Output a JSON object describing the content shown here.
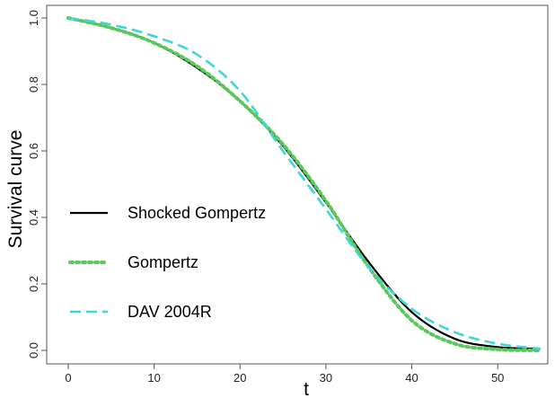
{
  "chart_data": {
    "type": "line",
    "title": "",
    "xlabel": "t",
    "ylabel": "Survival curve",
    "xlim": [
      0,
      55
    ],
    "ylim": [
      0,
      1
    ],
    "xticks": [
      "0",
      "10",
      "20",
      "30",
      "40",
      "50"
    ],
    "yticks": [
      "0.0",
      "0.2",
      "0.4",
      "0.6",
      "0.8",
      "1.0"
    ],
    "grid": false,
    "legend": "center-left",
    "series": [
      {
        "name": "Shocked Gompertz",
        "color": "#000000",
        "style": "solid",
        "x": [
          0,
          5,
          10,
          15,
          20,
          25,
          30,
          35,
          40,
          45,
          50,
          55
        ],
        "y": [
          1.0,
          0.97,
          0.925,
          0.85,
          0.75,
          0.615,
          0.445,
          0.265,
          0.115,
          0.035,
          0.01,
          0.005
        ]
      },
      {
        "name": "Gompertz",
        "color": "#5bc85b",
        "style": "dotted",
        "x": [
          0,
          5,
          10,
          15,
          20,
          25,
          30,
          35,
          40,
          45,
          50,
          55
        ],
        "y": [
          1.0,
          0.97,
          0.925,
          0.855,
          0.75,
          0.62,
          0.45,
          0.25,
          0.09,
          0.02,
          0.003,
          0.0
        ]
      },
      {
        "name": "DAV 2004R",
        "color": "#3fd6d6",
        "style": "dashed",
        "x": [
          0,
          5,
          10,
          15,
          20,
          25,
          30,
          35,
          40,
          45,
          50,
          55
        ],
        "y": [
          1.0,
          0.98,
          0.945,
          0.89,
          0.78,
          0.6,
          0.425,
          0.25,
          0.125,
          0.055,
          0.02,
          0.005
        ]
      }
    ]
  }
}
